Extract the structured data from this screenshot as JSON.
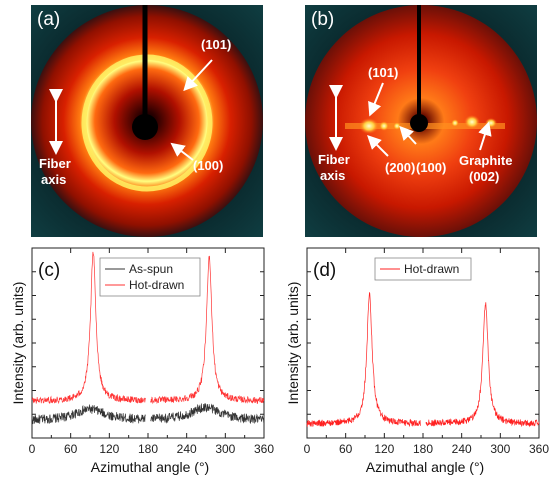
{
  "panel_a": {
    "label": "(a)",
    "annotations": {
      "peak_101": "(101)",
      "peak_100": "(100)",
      "fiber_axis_line1": "Fiber",
      "fiber_axis_line2": "axis"
    }
  },
  "panel_b": {
    "label": "(b)",
    "annotations": {
      "peak_101": "(101)",
      "peak_200": "(200)",
      "peak_100": "(100)",
      "graphite_line1": "Graphite",
      "graphite_line2": "(002)",
      "fiber_axis_line1": "Fiber",
      "fiber_axis_line2": "axis"
    }
  },
  "chart_data": [
    {
      "type": "line",
      "panel_label": "(c)",
      "xlabel": "Azimuthal angle (°)",
      "ylabel": "Intensity (arb. units)",
      "xlim": [
        0,
        360
      ],
      "ylim": [
        0,
        1
      ],
      "x_ticks": [
        0,
        60,
        120,
        180,
        240,
        300,
        360
      ],
      "legend_position": "top-center",
      "gap": [
        176,
        184
      ],
      "series": [
        {
          "name": "As-spun",
          "color": "#333333",
          "baseline": 0.09,
          "peaks": [
            {
              "x": 90,
              "height": 0.06,
              "width": 28
            },
            {
              "x": 270,
              "height": 0.07,
              "width": 28
            }
          ]
        },
        {
          "name": "Hot-drawn",
          "color": "#ff3333",
          "baseline": 0.195,
          "peaks": [
            {
              "x": 95,
              "height": 0.78,
              "width": 5
            },
            {
              "x": 275,
              "height": 0.76,
              "width": 5
            }
          ]
        }
      ]
    },
    {
      "type": "line",
      "panel_label": "(d)",
      "xlabel": "Azimuthal angle (°)",
      "ylabel": "Intensity (arb. units)",
      "xlim": [
        0,
        360
      ],
      "ylim": [
        0,
        1
      ],
      "x_ticks": [
        0,
        60,
        120,
        180,
        240,
        300,
        360
      ],
      "legend_position": "top-center",
      "gap": [
        176,
        184
      ],
      "series": [
        {
          "name": "Hot-drawn",
          "color": "#ff2020",
          "baseline": 0.075,
          "peaks": [
            {
              "x": 97,
              "height": 0.68,
              "width": 5
            },
            {
              "x": 277,
              "height": 0.63,
              "width": 5
            }
          ]
        }
      ]
    }
  ]
}
